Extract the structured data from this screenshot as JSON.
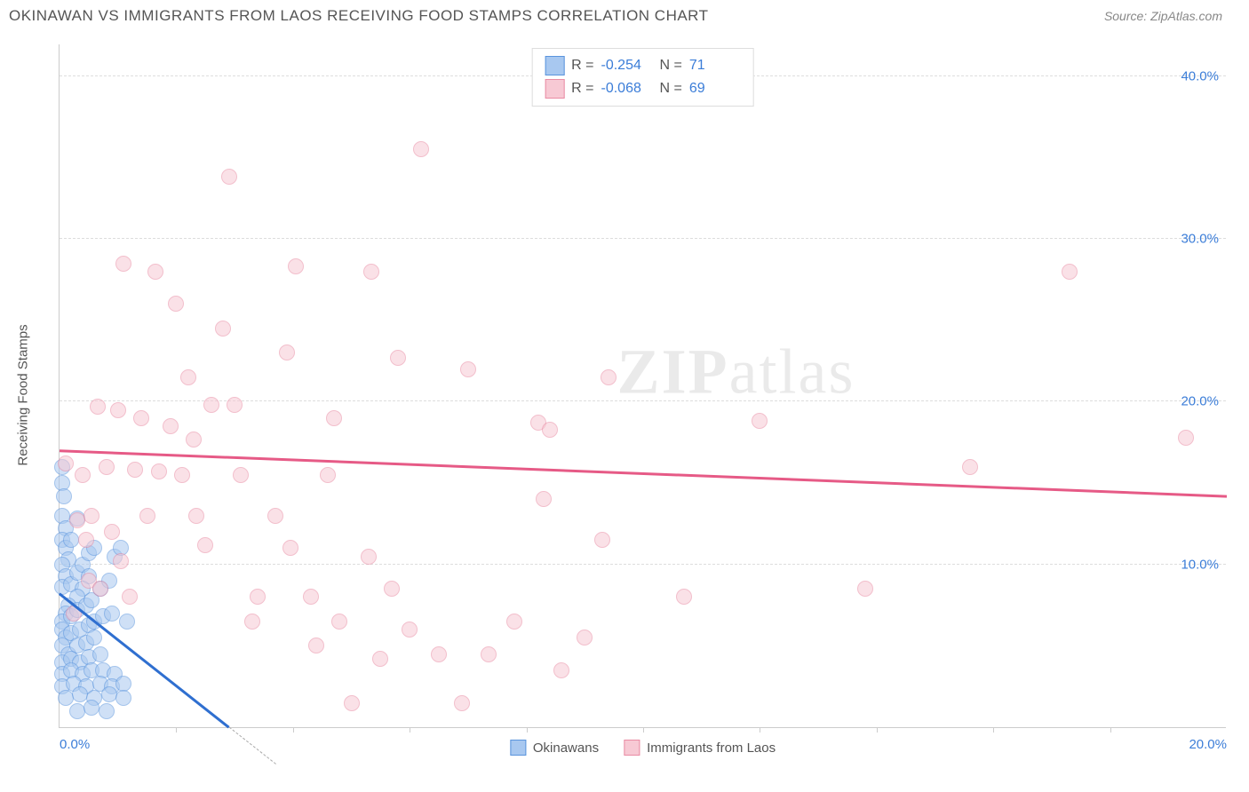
{
  "header": {
    "title": "OKINAWAN VS IMMIGRANTS FROM LAOS RECEIVING FOOD STAMPS CORRELATION CHART",
    "source_prefix": "Source: ",
    "source_name": "ZipAtlas.com"
  },
  "watermark": {
    "zip": "ZIP",
    "atlas": "atlas"
  },
  "chart": {
    "type": "scatter",
    "ylabel": "Receiving Food Stamps",
    "background_color": "#ffffff",
    "grid_color": "#dddddd",
    "axis_color": "#cccccc",
    "tick_label_color": "#3b7dd8",
    "tick_fontsize": 15,
    "label_color": "#555555",
    "label_fontsize": 15,
    "xlim": [
      0,
      20
    ],
    "ylim": [
      0,
      42
    ],
    "xticks": [
      {
        "val": 0,
        "label": "0.0%"
      },
      {
        "val": 20,
        "label": "20.0%"
      }
    ],
    "xticks_minor": [
      2,
      4,
      6,
      8,
      10,
      12,
      14,
      16,
      18
    ],
    "yticks": [
      {
        "val": 10,
        "label": "10.0%"
      },
      {
        "val": 20,
        "label": "20.0%"
      },
      {
        "val": 30,
        "label": "30.0%"
      },
      {
        "val": 40,
        "label": "40.0%"
      }
    ],
    "marker_radius": 9,
    "marker_stroke_width": 1,
    "series": [
      {
        "name": "Okinawans",
        "fill_color": "#a8c8f0",
        "stroke_color": "#5a94dd",
        "fill_opacity": 0.55,
        "R": "-0.254",
        "N": "71",
        "trend": {
          "x1": 0,
          "y1": 8.2,
          "x2": 2.9,
          "y2": 0,
          "color": "#2f6fd0",
          "width": 2.5,
          "dash_extend_x": 3.7
        },
        "points": [
          [
            0.05,
            16.0
          ],
          [
            0.05,
            15.0
          ],
          [
            0.08,
            14.2
          ],
          [
            0.05,
            13.0
          ],
          [
            0.1,
            12.2
          ],
          [
            0.05,
            11.5
          ],
          [
            0.1,
            11.0
          ],
          [
            0.2,
            11.5
          ],
          [
            0.3,
            12.8
          ],
          [
            0.15,
            10.3
          ],
          [
            0.05,
            10.0
          ],
          [
            0.1,
            9.3
          ],
          [
            0.05,
            8.6
          ],
          [
            0.2,
            8.8
          ],
          [
            0.3,
            9.5
          ],
          [
            0.4,
            10.0
          ],
          [
            0.5,
            10.7
          ],
          [
            0.6,
            11.0
          ],
          [
            0.5,
            9.3
          ],
          [
            0.4,
            8.5
          ],
          [
            0.3,
            8.0
          ],
          [
            0.15,
            7.5
          ],
          [
            0.1,
            7.0
          ],
          [
            0.05,
            6.5
          ],
          [
            0.2,
            6.8
          ],
          [
            0.3,
            7.2
          ],
          [
            0.45,
            7.5
          ],
          [
            0.55,
            7.8
          ],
          [
            0.7,
            8.5
          ],
          [
            0.85,
            9.0
          ],
          [
            0.95,
            10.5
          ],
          [
            1.05,
            11.0
          ],
          [
            0.05,
            6.0
          ],
          [
            0.1,
            5.5
          ],
          [
            0.2,
            5.8
          ],
          [
            0.35,
            6.0
          ],
          [
            0.5,
            6.3
          ],
          [
            0.6,
            6.5
          ],
          [
            0.75,
            6.8
          ],
          [
            0.9,
            7.0
          ],
          [
            0.05,
            5.0
          ],
          [
            0.15,
            4.5
          ],
          [
            0.3,
            5.0
          ],
          [
            0.45,
            5.2
          ],
          [
            0.6,
            5.5
          ],
          [
            0.05,
            4.0
          ],
          [
            0.2,
            4.2
          ],
          [
            0.35,
            4.0
          ],
          [
            0.5,
            4.3
          ],
          [
            0.7,
            4.5
          ],
          [
            0.05,
            3.3
          ],
          [
            0.2,
            3.5
          ],
          [
            0.4,
            3.3
          ],
          [
            0.55,
            3.5
          ],
          [
            0.75,
            3.5
          ],
          [
            0.95,
            3.3
          ],
          [
            0.05,
            2.5
          ],
          [
            0.25,
            2.7
          ],
          [
            0.45,
            2.5
          ],
          [
            0.7,
            2.7
          ],
          [
            0.9,
            2.5
          ],
          [
            1.1,
            2.7
          ],
          [
            0.1,
            1.8
          ],
          [
            0.35,
            2.0
          ],
          [
            0.6,
            1.8
          ],
          [
            0.85,
            2.0
          ],
          [
            1.1,
            1.8
          ],
          [
            0.3,
            1.0
          ],
          [
            0.55,
            1.2
          ],
          [
            0.8,
            1.0
          ],
          [
            1.15,
            6.5
          ]
        ]
      },
      {
        "name": "Immigrants from Laos",
        "fill_color": "#f7c9d4",
        "stroke_color": "#e98ba3",
        "fill_opacity": 0.55,
        "R": "-0.068",
        "N": "69",
        "trend": {
          "x1": 0,
          "y1": 17.0,
          "x2": 20,
          "y2": 14.2,
          "color": "#e65a86",
          "width": 2.5
        },
        "points": [
          [
            0.1,
            16.2
          ],
          [
            0.3,
            12.7
          ],
          [
            0.4,
            15.5
          ],
          [
            0.45,
            11.5
          ],
          [
            0.5,
            9.0
          ],
          [
            0.55,
            13.0
          ],
          [
            0.65,
            19.7
          ],
          [
            0.8,
            16.0
          ],
          [
            0.9,
            12.0
          ],
          [
            1.0,
            19.5
          ],
          [
            1.1,
            28.5
          ],
          [
            1.3,
            15.8
          ],
          [
            1.4,
            19.0
          ],
          [
            1.5,
            13.0
          ],
          [
            1.65,
            28.0
          ],
          [
            1.7,
            15.7
          ],
          [
            1.9,
            18.5
          ],
          [
            2.0,
            26.0
          ],
          [
            2.1,
            15.5
          ],
          [
            2.2,
            21.5
          ],
          [
            2.3,
            17.7
          ],
          [
            2.35,
            13.0
          ],
          [
            2.6,
            19.8
          ],
          [
            2.8,
            24.5
          ],
          [
            2.9,
            33.8
          ],
          [
            3.0,
            19.8
          ],
          [
            3.1,
            15.5
          ],
          [
            3.4,
            8.0
          ],
          [
            3.7,
            13.0
          ],
          [
            3.9,
            23.0
          ],
          [
            4.05,
            28.3
          ],
          [
            4.4,
            5.0
          ],
          [
            4.6,
            15.5
          ],
          [
            4.7,
            19.0
          ],
          [
            5.0,
            1.5
          ],
          [
            5.3,
            10.5
          ],
          [
            5.35,
            28.0
          ],
          [
            5.5,
            4.2
          ],
          [
            5.7,
            8.5
          ],
          [
            5.8,
            22.7
          ],
          [
            6.2,
            35.5
          ],
          [
            6.5,
            4.5
          ],
          [
            6.9,
            1.5
          ],
          [
            7.0,
            22.0
          ],
          [
            7.35,
            4.5
          ],
          [
            8.2,
            18.7
          ],
          [
            8.3,
            14.0
          ],
          [
            8.4,
            18.3
          ],
          [
            8.6,
            3.5
          ],
          [
            9.3,
            11.5
          ],
          [
            9.4,
            21.5
          ],
          [
            10.7,
            8.0
          ],
          [
            12.0,
            18.8
          ],
          [
            13.8,
            8.5
          ],
          [
            15.6,
            16.0
          ],
          [
            17.3,
            28.0
          ],
          [
            19.3,
            17.8
          ],
          [
            1.05,
            10.2
          ],
          [
            1.2,
            8.0
          ],
          [
            0.7,
            8.5
          ],
          [
            2.5,
            11.2
          ],
          [
            3.3,
            6.5
          ],
          [
            3.95,
            11.0
          ],
          [
            4.3,
            8.0
          ],
          [
            4.8,
            6.5
          ],
          [
            6.0,
            6.0
          ],
          [
            7.8,
            6.5
          ],
          [
            9.0,
            5.5
          ],
          [
            0.25,
            7.0
          ]
        ]
      }
    ],
    "legend_top": {
      "R_label": "R =",
      "N_label": "N ="
    },
    "legend_bottom": {
      "items": [
        {
          "label": "Okinawans",
          "fill": "#a8c8f0",
          "stroke": "#5a94dd"
        },
        {
          "label": "Immigrants from Laos",
          "fill": "#f7c9d4",
          "stroke": "#e98ba3"
        }
      ]
    }
  }
}
